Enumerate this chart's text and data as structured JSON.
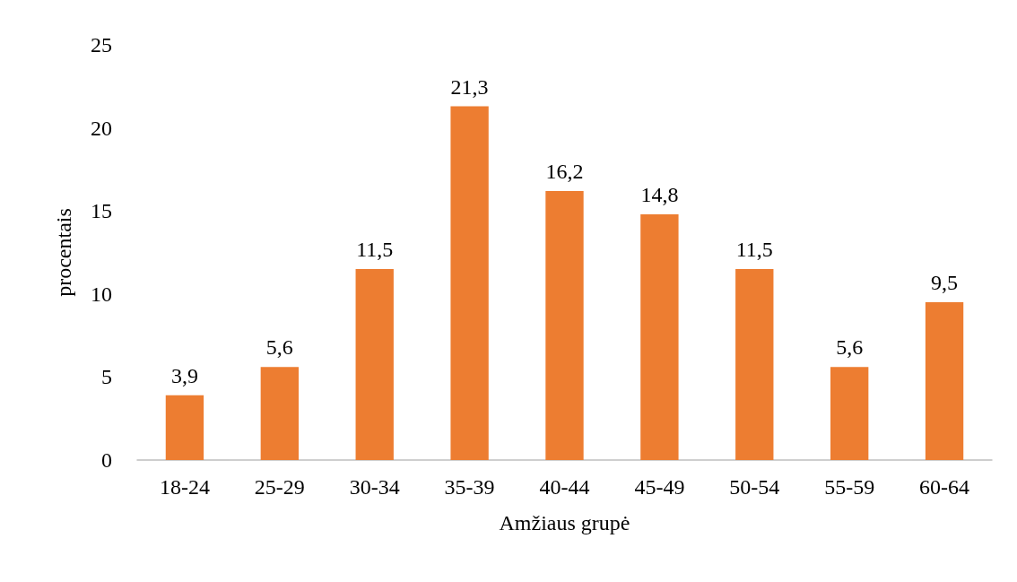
{
  "chart_data": {
    "type": "bar",
    "xlabel": "Amžiaus grupė",
    "ylabel": "procentais",
    "categories": [
      "18-24",
      "25-29",
      "30-34",
      "35-39",
      "40-44",
      "45-49",
      "50-54",
      "55-59",
      "60-64"
    ],
    "values": [
      3.9,
      5.6,
      11.5,
      21.3,
      16.2,
      14.8,
      11.5,
      5.6,
      9.5
    ],
    "value_labels": [
      "3,9",
      "5,6",
      "11,5",
      "21,3",
      "16,2",
      "14,8",
      "11,5",
      "5,6",
      "9,5"
    ],
    "color": "#ed7d31",
    "ylim": [
      0,
      25
    ],
    "yticks": [
      0,
      5,
      10,
      15,
      20,
      25
    ],
    "grid": false
  }
}
